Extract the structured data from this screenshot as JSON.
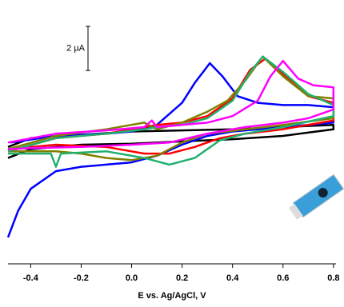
{
  "chart_data": {
    "type": "line",
    "xlabel": "E vs. Ag/AgCl, V",
    "scale_bar": {
      "label": "2 µA",
      "value": 2
    },
    "xlim": [
      -0.49,
      0.81
    ],
    "ylim": [
      -6,
      5.6
    ],
    "xticks": [
      -0.4,
      -0.2,
      {
        "value": 0,
        "label": "0.0"
      },
      0.2,
      0.4,
      0.6,
      0.8
    ],
    "series": [
      {
        "color": "#000000",
        "x": [
          -0.49,
          -0.4,
          -0.2,
          0,
          0.2,
          0.4,
          0.6,
          0.8,
          0.8,
          0.6,
          0.4,
          0.2,
          0,
          -0.2,
          -0.4,
          -0.49
        ],
        "values": [
          -0.7,
          -0.3,
          -0.15,
          0.0,
          0.05,
          0.1,
          0.2,
          0.3,
          0.1,
          -0.2,
          -0.35,
          -0.45,
          -0.55,
          -0.6,
          -0.8,
          -1.2
        ]
      },
      {
        "color": "#0000ff",
        "x": [
          -0.48,
          -0.3,
          -0.1,
          0.0,
          0.1,
          0.2,
          0.25,
          0.31,
          0.36,
          0.42,
          0.5,
          0.6,
          0.7,
          0.8,
          0.8,
          0.6,
          0.4,
          0.3,
          0.2,
          0.1,
          0.0,
          -0.1,
          -0.2,
          -0.3,
          -0.4,
          -0.45,
          -0.49
        ],
        "values": [
          -0.5,
          -0.2,
          -0.1,
          0.0,
          0.3,
          1.3,
          2.2,
          3.1,
          2.5,
          1.6,
          1.3,
          1.2,
          1.2,
          1.1,
          0.4,
          0.2,
          0.0,
          -0.2,
          -0.6,
          -1.1,
          -1.4,
          -1.5,
          -1.6,
          -1.8,
          -2.6,
          -3.6,
          -4.8
        ]
      },
      {
        "color": "#ff0000",
        "x": [
          -0.49,
          -0.3,
          -0.1,
          0.05,
          0.1,
          0.2,
          0.3,
          0.4,
          0.47,
          0.53,
          0.6,
          0.7,
          0.8,
          0.8,
          0.6,
          0.45,
          0.35,
          0.25,
          0.15,
          0.05,
          -0.1,
          -0.3,
          -0.49
        ],
        "values": [
          -0.9,
          -0.3,
          -0.1,
          0.2,
          0.3,
          0.4,
          0.7,
          1.5,
          2.8,
          3.3,
          2.6,
          1.6,
          1.3,
          0.5,
          0.1,
          -0.1,
          -0.3,
          -0.7,
          -1.0,
          -1.0,
          -0.7,
          -0.6,
          -0.8
        ]
      },
      {
        "color": "#808000",
        "x": [
          -0.49,
          -0.3,
          -0.1,
          0.05,
          0.1,
          0.2,
          0.3,
          0.38,
          0.45,
          0.52,
          0.6,
          0.7,
          0.8,
          0.8,
          0.6,
          0.45,
          0.3,
          0.2,
          0.1,
          0.0,
          -0.1,
          -0.2,
          -0.3,
          -0.49
        ],
        "values": [
          -0.8,
          -0.2,
          0.1,
          0.4,
          0.1,
          0.4,
          0.9,
          1.4,
          2.3,
          3.4,
          2.5,
          1.6,
          1.5,
          0.6,
          0.3,
          0.1,
          -0.1,
          -0.5,
          -1.1,
          -1.3,
          -1.2,
          -1.0,
          -0.9,
          -0.9
        ]
      },
      {
        "color": "#20b070",
        "x": [
          -0.49,
          -0.3,
          -0.1,
          0.05,
          0.1,
          0.2,
          0.3,
          0.4,
          0.47,
          0.52,
          0.6,
          0.7,
          0.8,
          0.8,
          0.6,
          0.45,
          0.35,
          0.25,
          0.15,
          0.05,
          -0.1,
          -0.28,
          -0.3,
          -0.32,
          -0.49
        ],
        "values": [
          -0.9,
          -0.3,
          -0.1,
          0.1,
          0.2,
          0.3,
          0.6,
          1.4,
          2.7,
          3.4,
          2.7,
          1.7,
          1.2,
          0.7,
          0.2,
          -0.1,
          -0.4,
          -1.2,
          -1.5,
          -1.2,
          -0.9,
          -1.0,
          -1.6,
          -1.0,
          -1.0
        ]
      },
      {
        "color": "#ff00ff",
        "x": [
          -0.49,
          -0.3,
          -0.1,
          0.05,
          0.08,
          0.1,
          0.3,
          0.4,
          0.5,
          0.55,
          0.6,
          0.66,
          0.72,
          0.8,
          0.8,
          0.7,
          0.6,
          0.45,
          0.3,
          0.15,
          0.0,
          -0.2,
          -0.4,
          -0.49
        ],
        "values": [
          -0.5,
          -0.1,
          0.05,
          0.2,
          0.5,
          0.2,
          0.4,
          0.7,
          1.4,
          2.5,
          3.2,
          2.4,
          2.1,
          2.0,
          1.0,
          0.6,
          0.4,
          0.2,
          -0.1,
          -0.5,
          -0.6,
          -0.7,
          -0.75,
          -0.8
        ]
      }
    ]
  }
}
